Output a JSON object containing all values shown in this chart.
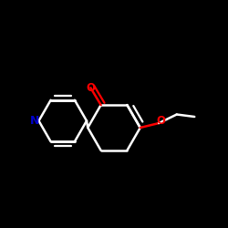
{
  "bg_color": "#000000",
  "bond_color": "#ffffff",
  "oxygen_color": "#ff0000",
  "nitrogen_color": "#0000cd",
  "line_width": 1.8,
  "figsize": [
    2.5,
    2.5
  ],
  "dpi": 100,
  "xlim": [
    0.0,
    1.0
  ],
  "ylim": [
    0.0,
    1.0
  ]
}
